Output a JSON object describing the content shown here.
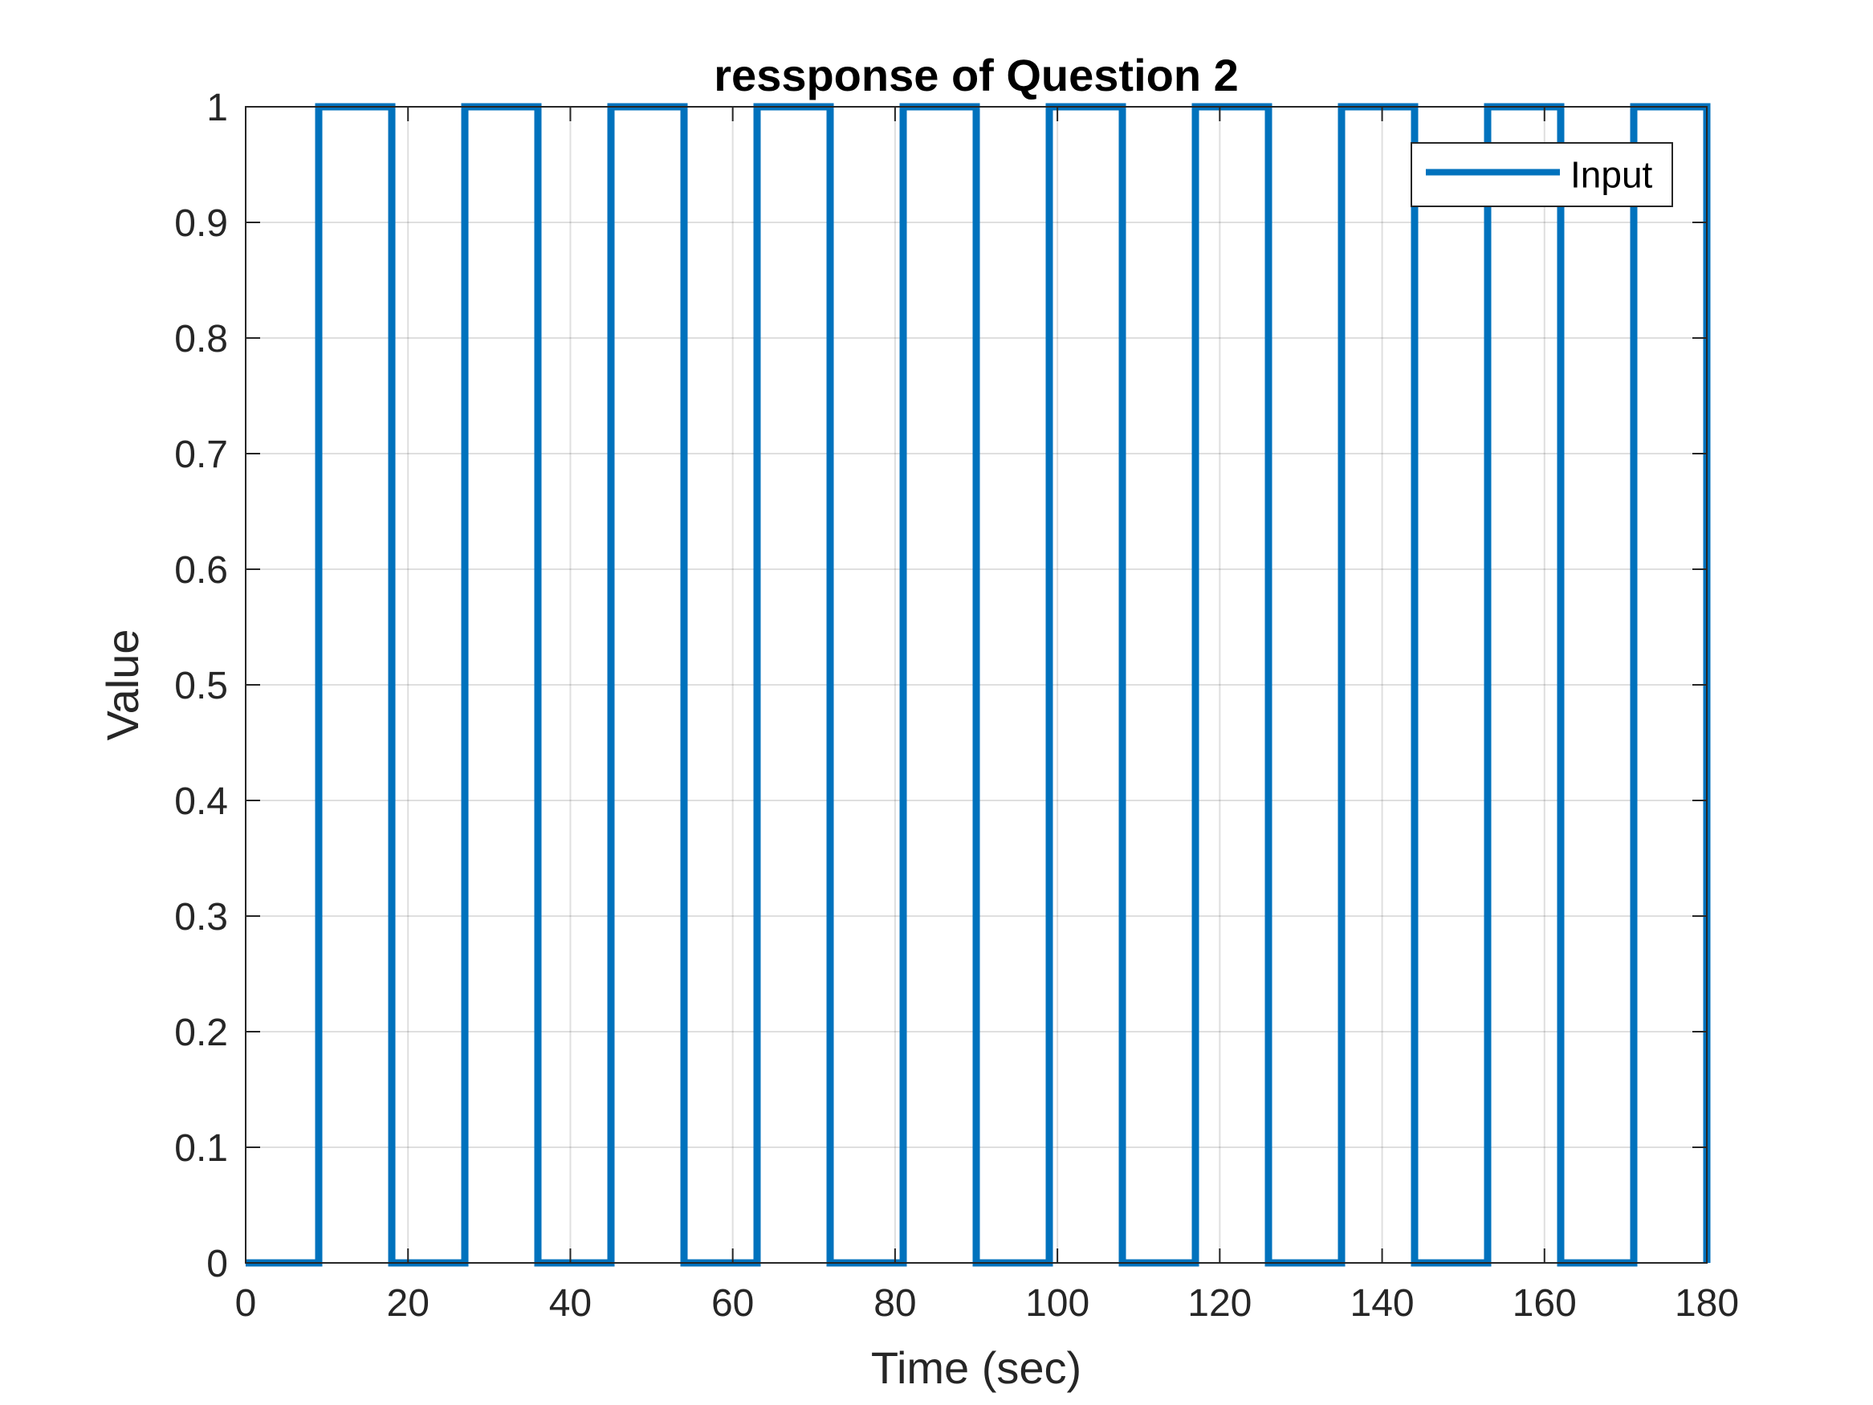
{
  "chart_data": {
    "type": "line",
    "title": "ressponse of Question 2",
    "xlabel": "Time (sec)",
    "ylabel": "Value",
    "xlim": [
      0,
      180
    ],
    "ylim": [
      0,
      1
    ],
    "xticks": [
      0,
      20,
      40,
      60,
      80,
      100,
      120,
      140,
      160,
      180
    ],
    "yticks": [
      0,
      0.1,
      0.2,
      0.3,
      0.4,
      0.5,
      0.6,
      0.7,
      0.8,
      0.9,
      1
    ],
    "xtick_labels": [
      "0",
      "20",
      "40",
      "60",
      "80",
      "100",
      "120",
      "140",
      "160",
      "180"
    ],
    "ytick_labels": [
      "0",
      "0.1",
      "0.2",
      "0.3",
      "0.4",
      "0.5",
      "0.6",
      "0.7",
      "0.8",
      "0.9",
      "1"
    ],
    "grid": true,
    "legend_position": "top-right",
    "series": [
      {
        "name": "Input",
        "color": "#0072BD",
        "style": "stairs",
        "x": [
          0,
          9,
          18,
          27,
          36,
          45,
          54,
          63,
          72,
          81,
          90,
          99,
          108,
          117,
          126,
          135,
          144,
          153,
          162,
          171,
          180
        ],
        "y": [
          0,
          1,
          0,
          1,
          0,
          1,
          0,
          1,
          0,
          1,
          0,
          1,
          0,
          1,
          0,
          1,
          0,
          1,
          0,
          1,
          0
        ]
      }
    ]
  }
}
